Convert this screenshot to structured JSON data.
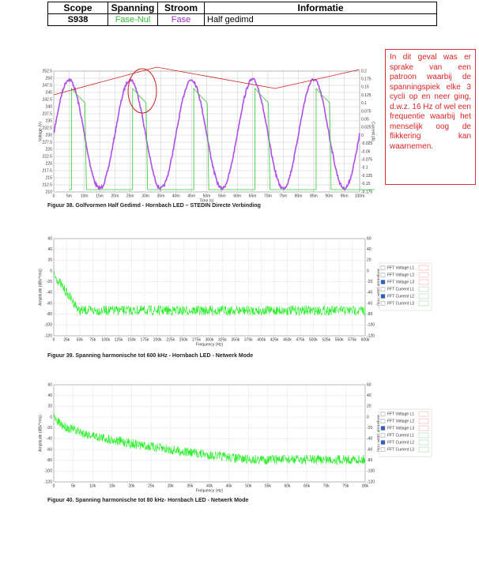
{
  "table": {
    "header": [
      "Scope",
      "Spanning",
      "Stroom",
      "Informatie"
    ],
    "rows": [
      [
        "S938",
        "Fase-Nul",
        "Fase",
        "Half gedimd"
      ]
    ]
  },
  "note": "In dit geval was er sprake van een patroon waarbij de spanningspiek elke 3 cycli op en neer ging, d.w.z. 16 Hz of wel een frequentie waarbij het menselijk oog de flikkering kan waarnemen.",
  "figures": [
    {
      "caption": "Figuur 38. Golfvormen Half Gedimd - Hornbach LED – STEDIN Directe Verbinding",
      "x_label": "Time (s)",
      "y_label": "Voltage (V)",
      "y2_label": "Current (A)",
      "yticks": [
        "252.5",
        "250",
        "247.5",
        "245",
        "242.5",
        "240",
        "237.5",
        "235",
        "232.5",
        "230",
        "227.5",
        "225",
        "222.5",
        "220",
        "217.5",
        "215",
        "212.5",
        "210"
      ],
      "y2ticks": [
        "0.2",
        "0.175",
        "0.15",
        "0.125",
        "0.1",
        "0.075",
        "0.05",
        "0.025",
        "0",
        "-0.025",
        "-0.05",
        "-0.075",
        "-0.1",
        "-0.125",
        "-0.15",
        "-0.175"
      ],
      "xticks": [
        "0",
        "5m",
        "10m",
        "15m",
        "20m",
        "25m",
        "30m",
        "35m",
        "40m",
        "45m",
        "50m",
        "55m",
        "60m",
        "65m",
        "70m",
        "75m",
        "80m",
        "85m",
        "90m",
        "95m",
        "100m"
      ]
    },
    {
      "caption": "Figuur 39. Spanning harmonische tot 600 kHz  - Hornbach LED - Netwerk Mode",
      "x_label": "Frequency (Hz)",
      "y_label": "Amplitude (dBV*rms)",
      "y2_label": "Amplitude (dBA*rms)",
      "yticks": [
        "60",
        "40",
        "20",
        "0",
        "-20",
        "-40",
        "-60",
        "-80",
        "-100",
        "-120"
      ],
      "y2ticks": [
        "60",
        "40",
        "20",
        "0",
        "-20",
        "-40",
        "-60",
        "-80",
        "-100",
        "-120"
      ],
      "xticks": [
        "0",
        "25k",
        "50k",
        "75k",
        "100k",
        "125k",
        "150k",
        "175k",
        "200k",
        "225k",
        "250k",
        "275k",
        "300k",
        "325k",
        "350k",
        "375k",
        "400k",
        "425k",
        "450k",
        "475k",
        "500k",
        "525k",
        "550k",
        "575k",
        "600k"
      ],
      "legend": [
        "FFT Voltage L1",
        "FFT Voltage L2",
        "FFT Voltage L3",
        "FFT Current L1",
        "FFT Current L2",
        "FFT Current L3"
      ]
    },
    {
      "caption": "Figuur 40. Spanning harmonische tot 80 kHz- Hornbach LED - Netwerk Mode",
      "x_label": "Frequency (Hz)",
      "y_label": "Amplitude (dBV*rms)",
      "y2_label": "Amplitude (dBA*rms)",
      "yticks": [
        "60",
        "40",
        "20",
        "0",
        "-20",
        "-40",
        "-60",
        "-80",
        "-100",
        "-120"
      ],
      "y2ticks": [
        "60",
        "40",
        "20",
        "0",
        "-20",
        "-40",
        "-60",
        "-80",
        "-100",
        "-120"
      ],
      "xticks": [
        "0",
        "5k",
        "10k",
        "15k",
        "20k",
        "25k",
        "30k",
        "35k",
        "40k",
        "45k",
        "50k",
        "55k",
        "60k",
        "65k",
        "70k",
        "75k",
        "80k"
      ],
      "legend": [
        "FFT Voltage L1",
        "FFT Voltage L2",
        "FFT Voltage L3",
        "FFT Current L1",
        "FFT Current L2",
        "FFT Current L3"
      ]
    }
  ]
}
